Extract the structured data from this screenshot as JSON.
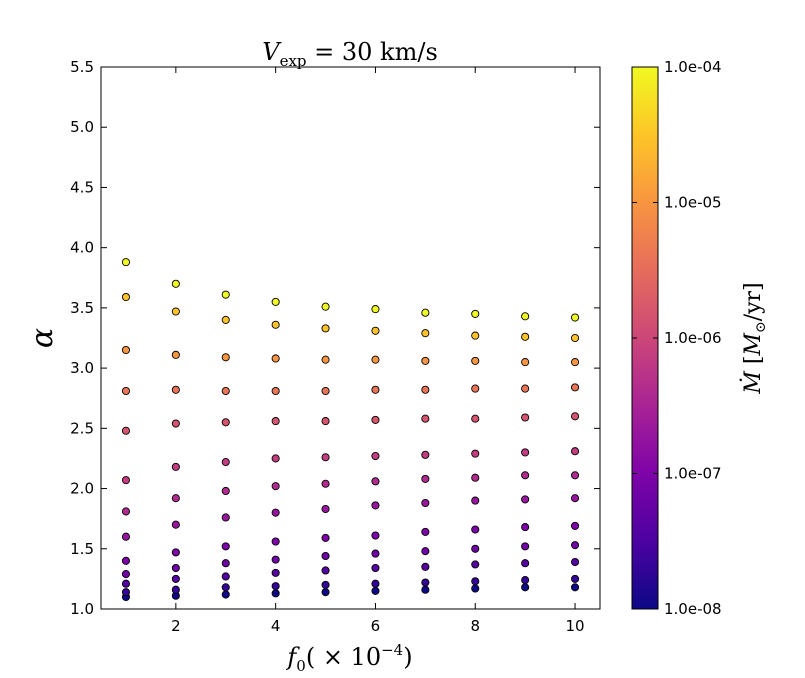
{
  "chart_data": {
    "type": "scatter",
    "title": "V_exp = 30 km/s",
    "xlabel": "f_0(×10^-4)",
    "ylabel": "α",
    "xlim": [
      0.5,
      10.5
    ],
    "ylim": [
      1.0,
      5.5
    ],
    "x_ticks": [
      2,
      4,
      6,
      8,
      10
    ],
    "y_ticks": [
      1.0,
      1.5,
      2.0,
      2.5,
      3.0,
      3.5,
      4.0,
      4.5,
      5.0,
      5.5
    ],
    "x_tick_labels": [
      "2",
      "4",
      "6",
      "8",
      "10"
    ],
    "y_tick_labels": [
      "1.0",
      "1.5",
      "2.0",
      "2.5",
      "3.0",
      "3.5",
      "4.0",
      "4.5",
      "5.0",
      "5.5"
    ],
    "grid": false,
    "colorbar": {
      "label": "Ṁ [M_⊙/yr]",
      "scale": "log",
      "colormap": "plasma",
      "range": [
        1e-08,
        0.0001
      ],
      "tick_values": [
        1e-08,
        1e-07,
        1e-06,
        1e-05,
        0.0001
      ],
      "tick_labels": [
        "1.0e-08",
        "1.0e-07",
        "1.0e-06",
        "1.0e-05",
        "1.0e-04"
      ]
    },
    "series": [
      {
        "x": 1,
        "points": [
          {
            "y": 1.1,
            "mdot": 1e-08
          },
          {
            "y": 1.14,
            "mdot": 2e-08
          },
          {
            "y": 1.21,
            "mdot": 4e-08
          },
          {
            "y": 1.29,
            "mdot": 7e-08
          },
          {
            "y": 1.4,
            "mdot": 1e-07
          },
          {
            "y": 1.6,
            "mdot": 2e-07
          },
          {
            "y": 1.81,
            "mdot": 4e-07
          },
          {
            "y": 2.07,
            "mdot": 7e-07
          },
          {
            "y": 2.48,
            "mdot": 1.5e-06
          },
          {
            "y": 2.81,
            "mdot": 4e-06
          },
          {
            "y": 3.15,
            "mdot": 1e-05
          },
          {
            "y": 3.59,
            "mdot": 3e-05
          },
          {
            "y": 3.88,
            "mdot": 0.0001
          }
        ]
      },
      {
        "x": 2,
        "points": [
          {
            "y": 1.11,
            "mdot": 1e-08
          },
          {
            "y": 1.16,
            "mdot": 2e-08
          },
          {
            "y": 1.25,
            "mdot": 4e-08
          },
          {
            "y": 1.34,
            "mdot": 7e-08
          },
          {
            "y": 1.47,
            "mdot": 1e-07
          },
          {
            "y": 1.7,
            "mdot": 2e-07
          },
          {
            "y": 1.92,
            "mdot": 4e-07
          },
          {
            "y": 2.18,
            "mdot": 7e-07
          },
          {
            "y": 2.54,
            "mdot": 1.5e-06
          },
          {
            "y": 2.82,
            "mdot": 4e-06
          },
          {
            "y": 3.11,
            "mdot": 1e-05
          },
          {
            "y": 3.47,
            "mdot": 3e-05
          },
          {
            "y": 3.7,
            "mdot": 0.0001
          }
        ]
      },
      {
        "x": 3,
        "points": [
          {
            "y": 1.12,
            "mdot": 1e-08
          },
          {
            "y": 1.18,
            "mdot": 2e-08
          },
          {
            "y": 1.27,
            "mdot": 4e-08
          },
          {
            "y": 1.38,
            "mdot": 7e-08
          },
          {
            "y": 1.52,
            "mdot": 1e-07
          },
          {
            "y": 1.76,
            "mdot": 2e-07
          },
          {
            "y": 1.98,
            "mdot": 4e-07
          },
          {
            "y": 2.22,
            "mdot": 7e-07
          },
          {
            "y": 2.55,
            "mdot": 1.5e-06
          },
          {
            "y": 2.81,
            "mdot": 4e-06
          },
          {
            "y": 3.09,
            "mdot": 1e-05
          },
          {
            "y": 3.4,
            "mdot": 3e-05
          },
          {
            "y": 3.61,
            "mdot": 0.0001
          }
        ]
      },
      {
        "x": 4,
        "points": [
          {
            "y": 1.13,
            "mdot": 1e-08
          },
          {
            "y": 1.19,
            "mdot": 2e-08
          },
          {
            "y": 1.3,
            "mdot": 4e-08
          },
          {
            "y": 1.41,
            "mdot": 7e-08
          },
          {
            "y": 1.56,
            "mdot": 1e-07
          },
          {
            "y": 1.8,
            "mdot": 2e-07
          },
          {
            "y": 2.02,
            "mdot": 4e-07
          },
          {
            "y": 2.25,
            "mdot": 7e-07
          },
          {
            "y": 2.56,
            "mdot": 1.5e-06
          },
          {
            "y": 2.81,
            "mdot": 4e-06
          },
          {
            "y": 3.08,
            "mdot": 1e-05
          },
          {
            "y": 3.36,
            "mdot": 3e-05
          },
          {
            "y": 3.55,
            "mdot": 0.0001
          }
        ]
      },
      {
        "x": 5,
        "points": [
          {
            "y": 1.14,
            "mdot": 1e-08
          },
          {
            "y": 1.2,
            "mdot": 2e-08
          },
          {
            "y": 1.32,
            "mdot": 4e-08
          },
          {
            "y": 1.44,
            "mdot": 7e-08
          },
          {
            "y": 1.59,
            "mdot": 1e-07
          },
          {
            "y": 1.83,
            "mdot": 2e-07
          },
          {
            "y": 2.04,
            "mdot": 4e-07
          },
          {
            "y": 2.26,
            "mdot": 7e-07
          },
          {
            "y": 2.56,
            "mdot": 1.5e-06
          },
          {
            "y": 2.81,
            "mdot": 4e-06
          },
          {
            "y": 3.07,
            "mdot": 1e-05
          },
          {
            "y": 3.33,
            "mdot": 3e-05
          },
          {
            "y": 3.51,
            "mdot": 0.0001
          }
        ]
      },
      {
        "x": 6,
        "points": [
          {
            "y": 1.15,
            "mdot": 1e-08
          },
          {
            "y": 1.21,
            "mdot": 2e-08
          },
          {
            "y": 1.34,
            "mdot": 4e-08
          },
          {
            "y": 1.46,
            "mdot": 7e-08
          },
          {
            "y": 1.61,
            "mdot": 1e-07
          },
          {
            "y": 1.86,
            "mdot": 2e-07
          },
          {
            "y": 2.06,
            "mdot": 4e-07
          },
          {
            "y": 2.27,
            "mdot": 7e-07
          },
          {
            "y": 2.57,
            "mdot": 1.5e-06
          },
          {
            "y": 2.82,
            "mdot": 4e-06
          },
          {
            "y": 3.07,
            "mdot": 1e-05
          },
          {
            "y": 3.31,
            "mdot": 3e-05
          },
          {
            "y": 3.49,
            "mdot": 0.0001
          }
        ]
      },
      {
        "x": 7,
        "points": [
          {
            "y": 1.16,
            "mdot": 1e-08
          },
          {
            "y": 1.22,
            "mdot": 2e-08
          },
          {
            "y": 1.35,
            "mdot": 4e-08
          },
          {
            "y": 1.48,
            "mdot": 7e-08
          },
          {
            "y": 1.64,
            "mdot": 1e-07
          },
          {
            "y": 1.88,
            "mdot": 2e-07
          },
          {
            "y": 2.08,
            "mdot": 4e-07
          },
          {
            "y": 2.28,
            "mdot": 7e-07
          },
          {
            "y": 2.58,
            "mdot": 1.5e-06
          },
          {
            "y": 2.82,
            "mdot": 4e-06
          },
          {
            "y": 3.06,
            "mdot": 1e-05
          },
          {
            "y": 3.29,
            "mdot": 3e-05
          },
          {
            "y": 3.46,
            "mdot": 0.0001
          }
        ]
      },
      {
        "x": 8,
        "points": [
          {
            "y": 1.17,
            "mdot": 1e-08
          },
          {
            "y": 1.23,
            "mdot": 2e-08
          },
          {
            "y": 1.37,
            "mdot": 4e-08
          },
          {
            "y": 1.5,
            "mdot": 7e-08
          },
          {
            "y": 1.66,
            "mdot": 1e-07
          },
          {
            "y": 1.9,
            "mdot": 2e-07
          },
          {
            "y": 2.09,
            "mdot": 4e-07
          },
          {
            "y": 2.29,
            "mdot": 7e-07
          },
          {
            "y": 2.58,
            "mdot": 1.5e-06
          },
          {
            "y": 2.83,
            "mdot": 4e-06
          },
          {
            "y": 3.06,
            "mdot": 1e-05
          },
          {
            "y": 3.27,
            "mdot": 3e-05
          },
          {
            "y": 3.45,
            "mdot": 0.0001
          }
        ]
      },
      {
        "x": 9,
        "points": [
          {
            "y": 1.18,
            "mdot": 1e-08
          },
          {
            "y": 1.24,
            "mdot": 2e-08
          },
          {
            "y": 1.38,
            "mdot": 4e-08
          },
          {
            "y": 1.52,
            "mdot": 7e-08
          },
          {
            "y": 1.68,
            "mdot": 1e-07
          },
          {
            "y": 1.91,
            "mdot": 2e-07
          },
          {
            "y": 2.11,
            "mdot": 4e-07
          },
          {
            "y": 2.3,
            "mdot": 7e-07
          },
          {
            "y": 2.59,
            "mdot": 1.5e-06
          },
          {
            "y": 2.83,
            "mdot": 4e-06
          },
          {
            "y": 3.05,
            "mdot": 1e-05
          },
          {
            "y": 3.26,
            "mdot": 3e-05
          },
          {
            "y": 3.43,
            "mdot": 0.0001
          }
        ]
      },
      {
        "x": 10,
        "points": [
          {
            "y": 1.18,
            "mdot": 1e-08
          },
          {
            "y": 1.25,
            "mdot": 2e-08
          },
          {
            "y": 1.39,
            "mdot": 4e-08
          },
          {
            "y": 1.53,
            "mdot": 7e-08
          },
          {
            "y": 1.69,
            "mdot": 1e-07
          },
          {
            "y": 1.92,
            "mdot": 2e-07
          },
          {
            "y": 2.11,
            "mdot": 4e-07
          },
          {
            "y": 2.31,
            "mdot": 7e-07
          },
          {
            "y": 2.6,
            "mdot": 1.5e-06
          },
          {
            "y": 2.84,
            "mdot": 4e-06
          },
          {
            "y": 3.05,
            "mdot": 1e-05
          },
          {
            "y": 3.25,
            "mdot": 3e-05
          },
          {
            "y": 3.42,
            "mdot": 0.0001
          }
        ]
      }
    ]
  }
}
